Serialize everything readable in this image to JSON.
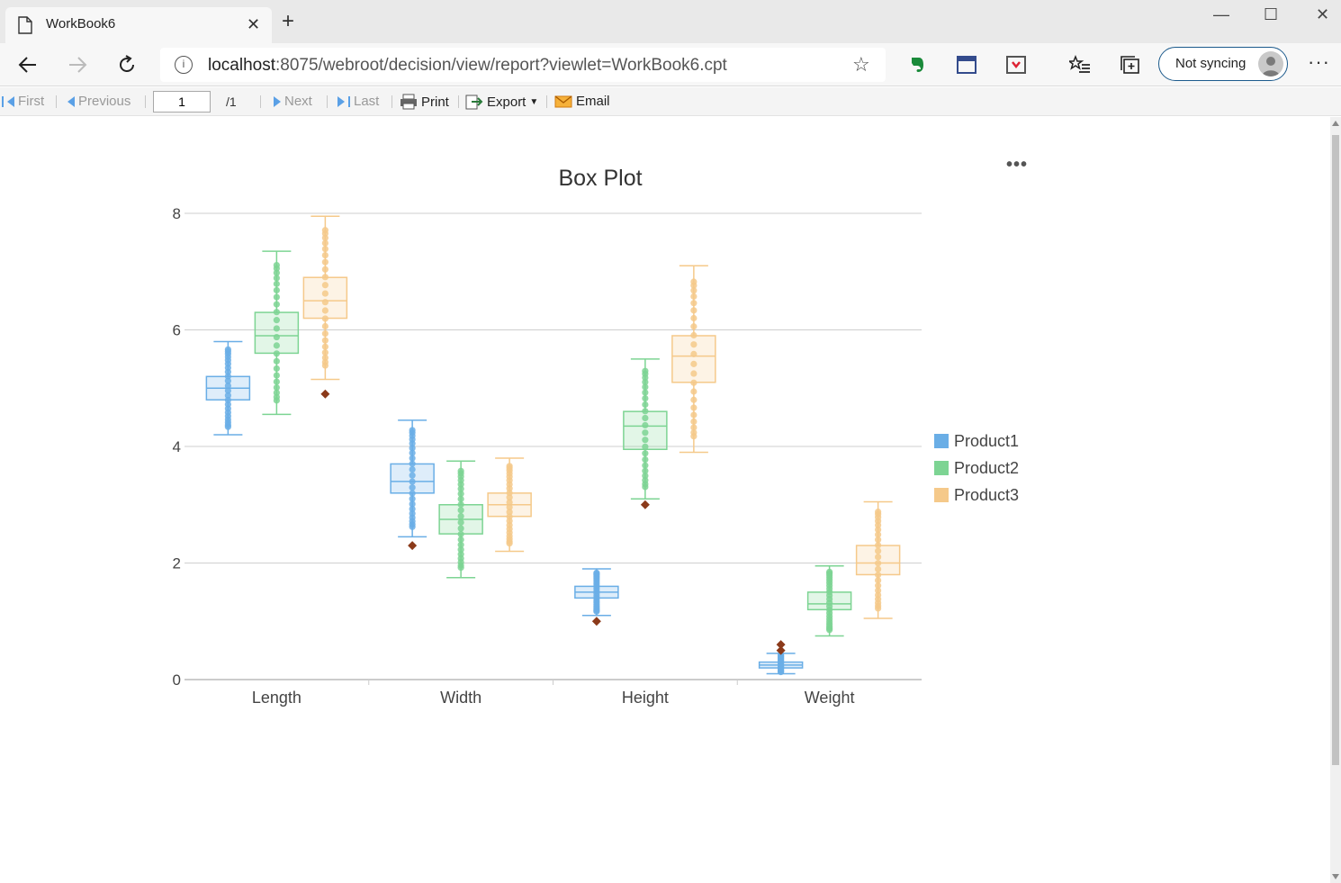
{
  "browser": {
    "tab_title": "WorkBook6",
    "url_host": "localhost",
    "url_rest": ":8075/webroot/decision/view/report?viewlet=WorkBook6.cpt",
    "sync_label": "Not syncing"
  },
  "report_toolbar": {
    "first": "First",
    "previous": "Previous",
    "page_value": "1",
    "page_total": "/1",
    "next": "Next",
    "last": "Last",
    "print": "Print",
    "export": "Export",
    "email": "Email"
  },
  "chart_data": {
    "type": "boxplot",
    "title": "Box Plot",
    "categories": [
      "Length",
      "Width",
      "Height",
      "Weight"
    ],
    "ylim": [
      0,
      8
    ],
    "yticks": [
      "0",
      "2",
      "4",
      "6",
      "8"
    ],
    "grid": true,
    "legend_position": "right",
    "series": [
      {
        "name": "Product1",
        "color": "#6aaee6",
        "boxes": [
          {
            "min": 4.2,
            "q1": 4.8,
            "median": 5.0,
            "q3": 5.2,
            "max": 5.8,
            "outliers": []
          },
          {
            "min": 2.45,
            "q1": 3.2,
            "median": 3.4,
            "q3": 3.7,
            "max": 4.45,
            "outliers": [
              2.3
            ]
          },
          {
            "min": 1.1,
            "q1": 1.4,
            "median": 1.5,
            "q3": 1.6,
            "max": 1.9,
            "outliers": [
              1.0
            ]
          },
          {
            "min": 0.1,
            "q1": 0.2,
            "median": 0.25,
            "q3": 0.3,
            "max": 0.45,
            "outliers": [
              0.5,
              0.6
            ]
          }
        ]
      },
      {
        "name": "Product2",
        "color": "#7dd493",
        "boxes": [
          {
            "min": 4.55,
            "q1": 5.6,
            "median": 5.9,
            "q3": 6.3,
            "max": 7.35,
            "outliers": []
          },
          {
            "min": 1.75,
            "q1": 2.5,
            "median": 2.75,
            "q3": 3.0,
            "max": 3.75,
            "outliers": []
          },
          {
            "min": 3.1,
            "q1": 3.95,
            "median": 4.35,
            "q3": 4.6,
            "max": 5.5,
            "outliers": [
              3.0
            ]
          },
          {
            "min": 0.75,
            "q1": 1.2,
            "median": 1.3,
            "q3": 1.5,
            "max": 1.95,
            "outliers": []
          }
        ]
      },
      {
        "name": "Product3",
        "color": "#f5c98a",
        "boxes": [
          {
            "min": 5.15,
            "q1": 6.2,
            "median": 6.5,
            "q3": 6.9,
            "max": 7.95,
            "outliers": [
              4.9
            ]
          },
          {
            "min": 2.2,
            "q1": 2.8,
            "median": 3.0,
            "q3": 3.2,
            "max": 3.8,
            "outliers": []
          },
          {
            "min": 3.9,
            "q1": 5.1,
            "median": 5.55,
            "q3": 5.9,
            "max": 7.1,
            "outliers": []
          },
          {
            "min": 1.05,
            "q1": 1.8,
            "median": 2.0,
            "q3": 2.3,
            "max": 3.05,
            "outliers": []
          }
        ]
      }
    ]
  }
}
